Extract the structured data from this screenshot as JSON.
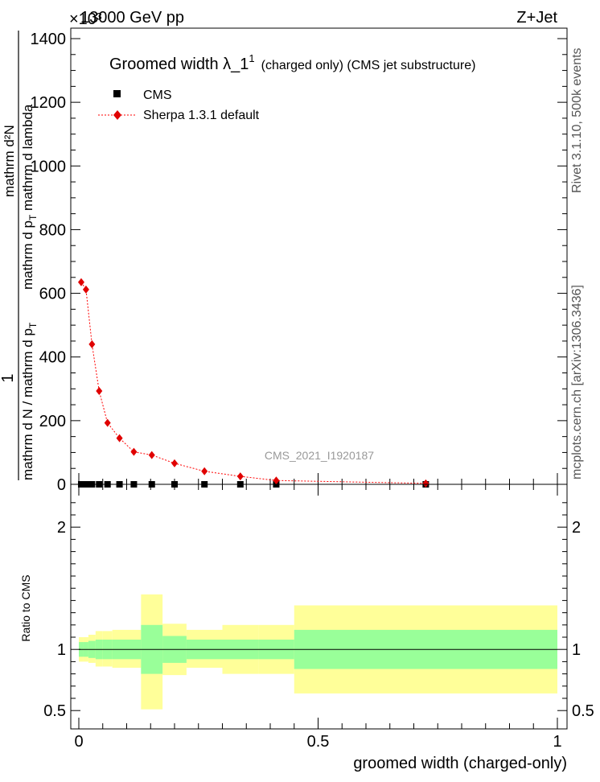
{
  "header": {
    "left": "13000 GeV pp",
    "right": "Z+Jet",
    "exponent": "×10³"
  },
  "side": {
    "rivet": "Rivet 3.1.10,  500k events",
    "mcplots": "mcplots.cern.ch [arXiv:1306.3436]"
  },
  "title": {
    "main": "Groomed width  λ_1",
    "sup": "1",
    "sub": "(charged only) (CMS jet substructure)"
  },
  "legend": {
    "cms": "CMS",
    "sherpa": "Sherpa 1.3.1 default"
  },
  "watermark": "CMS_2021_I1920187",
  "ylabel_top": {
    "one": "1",
    "frac_num": "mathrm d N / mathrm d p",
    "frac_num_sub": "T",
    "frac_den1": "mathrm d²N",
    "frac_den2": "mathrm d p",
    "frac_den2_sub": "T",
    "frac_den3": " mathrm d lambda"
  },
  "ylabel_bottom": "Ratio to CMS",
  "xlabel": "groomed width (charged-only)",
  "colors": {
    "sherpa": "#ff0000",
    "sherpa_marker": "#e00000",
    "band_inner": "#99ff99",
    "band_outer": "#ffff99",
    "watermark": "#999999"
  },
  "chart_data": [
    {
      "type": "scatter",
      "name": "main",
      "xlim": [
        0,
        1
      ],
      "ylim": [
        0,
        1400
      ],
      "y_multiplier": 1000,
      "yticks": [
        0,
        200,
        400,
        600,
        800,
        1000,
        1200,
        1400
      ],
      "ytick_labels": [
        "0",
        "200",
        "400",
        "600",
        "800",
        "1000",
        "1200",
        "1400"
      ],
      "bins": [
        0,
        0.01,
        0.02,
        0.035,
        0.05,
        0.07,
        0.1,
        0.13,
        0.175,
        0.225,
        0.3,
        0.375,
        0.45,
        1.0
      ],
      "series": [
        {
          "name": "CMS",
          "x": [
            0.005,
            0.015,
            0.0275,
            0.0425,
            0.06,
            0.085,
            0.115,
            0.1525,
            0.2,
            0.2625,
            0.3375,
            0.4125,
            0.725
          ],
          "y": [
            0,
            0,
            0,
            0,
            0,
            0,
            0,
            0,
            0,
            0,
            0,
            0,
            0
          ]
        },
        {
          "name": "Sherpa 1.3.1 default",
          "x": [
            0.005,
            0.015,
            0.0275,
            0.0425,
            0.06,
            0.085,
            0.115,
            0.1525,
            0.2,
            0.2625,
            0.3375,
            0.4125,
            0.725
          ],
          "y": [
            635,
            612,
            440,
            293,
            193,
            145,
            102,
            92,
            66,
            41,
            25,
            12,
            3
          ],
          "yerr": [
            10,
            10,
            8,
            7,
            6,
            5,
            4,
            4,
            3,
            3,
            2,
            2,
            1
          ]
        }
      ]
    },
    {
      "type": "area",
      "name": "ratio",
      "xlim": [
        0,
        1
      ],
      "ylim": [
        0.35,
        2.35
      ],
      "yticks": [
        0.5,
        1,
        2
      ],
      "ytick_labels": [
        "0.5",
        "1",
        "2"
      ],
      "xticks": [
        0,
        0.5,
        1
      ],
      "xtick_labels": [
        "0",
        "0.5",
        "1"
      ],
      "bins": [
        0,
        0.01,
        0.02,
        0.035,
        0.05,
        0.07,
        0.1,
        0.13,
        0.175,
        0.225,
        0.3,
        0.375,
        0.45,
        1.0
      ],
      "inner_lo": [
        0.94,
        0.94,
        0.93,
        0.92,
        0.92,
        0.92,
        0.92,
        0.8,
        0.89,
        0.92,
        0.92,
        0.92,
        0.84
      ],
      "inner_hi": [
        1.06,
        1.06,
        1.07,
        1.08,
        1.08,
        1.08,
        1.08,
        1.2,
        1.11,
        1.08,
        1.08,
        1.08,
        1.16
      ],
      "outer_lo": [
        0.9,
        0.9,
        0.89,
        0.86,
        0.86,
        0.85,
        0.85,
        0.51,
        0.79,
        0.85,
        0.8,
        0.8,
        0.64
      ],
      "outer_hi": [
        1.1,
        1.1,
        1.12,
        1.15,
        1.15,
        1.16,
        1.16,
        1.45,
        1.21,
        1.16,
        1.2,
        1.2,
        1.36
      ]
    }
  ]
}
